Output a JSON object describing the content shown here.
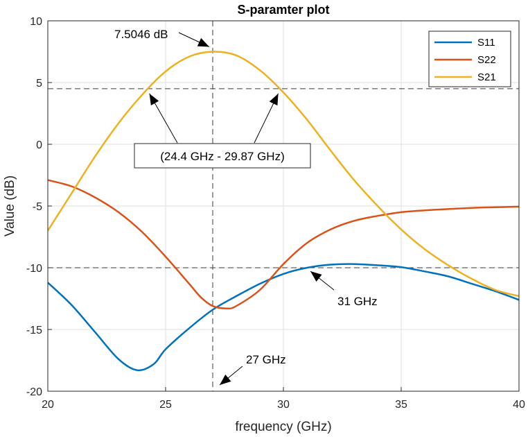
{
  "chart_data": {
    "type": "line",
    "title": "S-paramter plot",
    "xlabel": "frequency (GHz)",
    "ylabel": "Value (dB)",
    "xlim": [
      20,
      40
    ],
    "ylim": [
      -20,
      10
    ],
    "xticks": [
      "20",
      "25",
      "30",
      "35",
      "40"
    ],
    "yticks": [
      "10",
      "5",
      "0",
      "-5",
      "-10",
      "-15",
      "-20"
    ],
    "grid": true,
    "legend_position": "top-right",
    "series": [
      {
        "name": "S11",
        "color": "#0072BD",
        "x": [
          20,
          21,
          22,
          23,
          23.8,
          24.5,
          25,
          26,
          27,
          28,
          29,
          30,
          31,
          32,
          33,
          34,
          35,
          36,
          37,
          38,
          39,
          40
        ],
        "y": [
          -11.2,
          -13.0,
          -15.2,
          -17.4,
          -18.3,
          -17.8,
          -16.6,
          -14.9,
          -13.4,
          -12.3,
          -11.3,
          -10.5,
          -10.0,
          -9.75,
          -9.7,
          -9.8,
          -9.95,
          -10.3,
          -10.7,
          -11.3,
          -11.9,
          -12.6
        ]
      },
      {
        "name": "S22",
        "color": "#D95319",
        "x": [
          20,
          21,
          22,
          23,
          24,
          25,
          26,
          26.5,
          27,
          27.6,
          28,
          29,
          30,
          31,
          32,
          33,
          34,
          35,
          36,
          37,
          38,
          39,
          40
        ],
        "y": [
          -2.9,
          -3.4,
          -4.3,
          -5.5,
          -7.1,
          -9.1,
          -11.3,
          -12.4,
          -13.1,
          -13.3,
          -13.1,
          -11.8,
          -9.7,
          -8.0,
          -6.9,
          -6.2,
          -5.8,
          -5.5,
          -5.35,
          -5.25,
          -5.15,
          -5.1,
          -5.05
        ]
      },
      {
        "name": "S21",
        "color": "#EDB120",
        "x": [
          20,
          21,
          22,
          23,
          24,
          25,
          26,
          27,
          28,
          29,
          30,
          31,
          32,
          33,
          34,
          35,
          36,
          37,
          38,
          39,
          40
        ],
        "y": [
          -7.0,
          -4.0,
          -1.0,
          1.7,
          4.0,
          5.9,
          7.1,
          7.5,
          7.2,
          6.0,
          4.2,
          2.0,
          -0.5,
          -2.9,
          -5.0,
          -6.9,
          -8.5,
          -9.8,
          -10.9,
          -11.8,
          -12.3
        ]
      }
    ],
    "reference_lines": {
      "horizontal_db": [
        4.5,
        -10
      ],
      "vertical_ghz": [
        27
      ]
    },
    "annotations": [
      {
        "text": "7.5046 dB",
        "target_x": 27,
        "target_y": 7.5
      },
      {
        "text": "(24.4 GHz - 29.87 GHz)",
        "targets": [
          [
            24.4,
            4.5
          ],
          [
            29.87,
            4.5
          ]
        ]
      },
      {
        "text": "31 GHz",
        "target_x": 31,
        "target_y": -10
      },
      {
        "text": "27 GHz",
        "target_x": 27,
        "target_y": -20
      }
    ]
  }
}
